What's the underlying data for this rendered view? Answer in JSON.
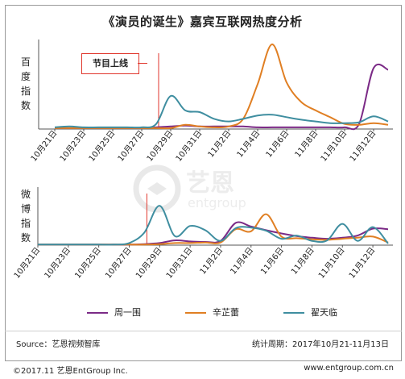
{
  "title": "《演员的诞生》嘉宾互联网热度分析",
  "annotation": "节目上线",
  "watermark": {
    "cn": "艺恩",
    "en": "entgroup"
  },
  "footer": {
    "source": "Source：艺恩视频智库",
    "period": "统计周期：2017年10月21-11月13日",
    "copyright": "©2017.11 艺恩EntGroup Inc.",
    "website": "www.entgroup.com.cn"
  },
  "colors": {
    "zhou": "#7b2a86",
    "xin": "#e07f23",
    "zhai": "#3f8ea0",
    "marker": "#e0362c"
  },
  "chart_data": [
    {
      "type": "line",
      "title": "",
      "ylabel": "百度指数",
      "x": [
        "10月21日",
        "10月22日",
        "10月23日",
        "10月24日",
        "10月25日",
        "10月26日",
        "10月27日",
        "10月28日",
        "10月29日",
        "10月30日",
        "10月31日",
        "11月1日",
        "11月2日",
        "11月3日",
        "11月4日",
        "11月5日",
        "11月6日",
        "11月7日",
        "11月8日",
        "11月9日",
        "11月10日",
        "11月11日",
        "11月12日",
        "11月13日"
      ],
      "tick_labels": [
        "10月21日",
        "10月23日",
        "10月25日",
        "10月27日",
        "10月29日",
        "10月31日",
        "11月2日",
        "11月4日",
        "11月6日",
        "11月8日",
        "11月10日",
        "11月12日"
      ],
      "ylim": [
        0,
        100
      ],
      "marker_at": "10月28日",
      "series": [
        {
          "name": "周一围",
          "color_key": "zhou",
          "values": [
            1,
            1,
            1,
            1,
            1,
            1,
            1,
            2,
            3,
            4,
            3,
            3,
            3,
            3,
            2,
            2,
            2,
            2,
            2,
            2,
            2,
            6,
            72,
            70
          ]
        },
        {
          "name": "辛芷蕾",
          "color_key": "xin",
          "values": [
            1,
            1,
            1,
            1,
            1,
            1,
            1,
            1,
            1,
            5,
            3,
            2,
            3,
            12,
            53,
            100,
            55,
            32,
            22,
            14,
            6,
            5,
            7,
            5
          ]
        },
        {
          "name": "翟天临",
          "color_key": "zhai",
          "values": [
            2,
            3,
            2,
            2,
            2,
            2,
            2,
            6,
            39,
            22,
            20,
            12,
            9,
            12,
            16,
            17,
            14,
            11,
            9,
            7,
            7,
            8,
            15,
            9
          ]
        }
      ]
    },
    {
      "type": "line",
      "title": "",
      "ylabel": "微博指数",
      "x": [
        "10月21日",
        "10月22日",
        "10月23日",
        "10月24日",
        "10月25日",
        "10月26日",
        "10月27日",
        "10月28日",
        "10月29日",
        "10月30日",
        "10月31日",
        "11月1日",
        "11月2日",
        "11月3日",
        "11月4日",
        "11月5日",
        "11月6日",
        "11月7日",
        "11月8日",
        "11月9日",
        "11月10日",
        "11月11日",
        "11月12日",
        "11月13日"
      ],
      "tick_labels": [
        "10月21日",
        "10月23日",
        "10月25日",
        "10月27日",
        "10月29日",
        "10月31日",
        "11月2日",
        "11月4日",
        "11月6日",
        "11月8日",
        "11月10日",
        "11月12日"
      ],
      "ylim": [
        0,
        100
      ],
      "marker_at": "10月28日",
      "series": [
        {
          "name": "周一围",
          "color_key": "zhou",
          "values": [
            1,
            1,
            1,
            1,
            1,
            1,
            1,
            2,
            4,
            9,
            7,
            6,
            8,
            42,
            35,
            28,
            22,
            17,
            14,
            12,
            14,
            18,
            31,
            30
          ]
        },
        {
          "name": "辛芷蕾",
          "color_key": "xin",
          "values": [
            1,
            1,
            1,
            1,
            1,
            1,
            1,
            1,
            2,
            4,
            4,
            5,
            5,
            30,
            26,
            58,
            16,
            13,
            11,
            10,
            12,
            14,
            16,
            5
          ]
        },
        {
          "name": "翟天临",
          "color_key": "zhai",
          "values": [
            1,
            1,
            1,
            1,
            1,
            1,
            4,
            24,
            74,
            17,
            36,
            28,
            8,
            32,
            33,
            27,
            12,
            18,
            8,
            9,
            40,
            8,
            34,
            3
          ]
        }
      ]
    }
  ],
  "legend": [
    {
      "name": "周一围",
      "color_key": "zhou"
    },
    {
      "name": "辛芷蕾",
      "color_key": "xin"
    },
    {
      "name": "翟天临",
      "color_key": "zhai"
    }
  ]
}
